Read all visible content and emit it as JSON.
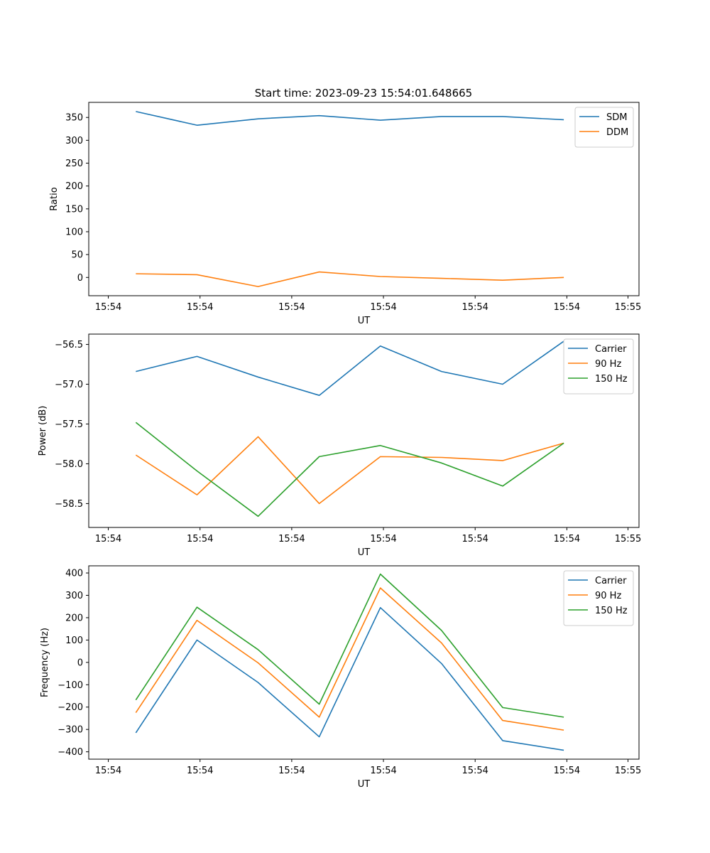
{
  "figure": {
    "title": "Start time: 2023-09-23 15:54:01.648665"
  },
  "colors": {
    "blue": "#1f77b4",
    "orange": "#ff7f0e",
    "green": "#2ca02c"
  },
  "chart_data": [
    {
      "type": "line",
      "title": "Start time: 2023-09-23 15:54:01.648665",
      "xlabel": "UT",
      "ylabel": "Ratio",
      "xticks": [
        "15:54",
        "15:54",
        "15:54",
        "15:54",
        "15:54",
        "15:54",
        "15:55"
      ],
      "yticks": [
        0,
        50,
        100,
        150,
        200,
        250,
        300,
        350
      ],
      "ylim": [
        -40,
        383
      ],
      "legend_position": "top-right",
      "grid": false,
      "x": [
        1,
        2,
        3,
        4,
        5,
        6,
        7,
        8
      ],
      "series": [
        {
          "name": "SDM",
          "color": "#1f77b4",
          "values": [
            363,
            333,
            347,
            354,
            344,
            352,
            352,
            345
          ]
        },
        {
          "name": "DDM",
          "color": "#ff7f0e",
          "values": [
            8,
            6,
            -20,
            12,
            2,
            -2,
            -6,
            0
          ]
        }
      ]
    },
    {
      "type": "line",
      "title": "",
      "xlabel": "UT",
      "ylabel": "Power (dB)",
      "xticks": [
        "15:54",
        "15:54",
        "15:54",
        "15:54",
        "15:54",
        "15:54",
        "15:55"
      ],
      "yticks": [
        -58.5,
        -58.0,
        -57.5,
        -57.0,
        -56.5
      ],
      "ytick_labels": [
        "−58.5",
        "−58.0",
        "−57.5",
        "−57.0",
        "−56.5"
      ],
      "ylim": [
        -58.8,
        -56.37
      ],
      "legend_position": "top-right",
      "grid": false,
      "x": [
        1,
        2,
        3,
        4,
        5,
        6,
        7,
        8
      ],
      "series": [
        {
          "name": "Carrier",
          "color": "#1f77b4",
          "values": [
            -56.84,
            -56.65,
            -56.91,
            -57.14,
            -56.52,
            -56.84,
            -57.0,
            -56.46
          ]
        },
        {
          "name": "90 Hz",
          "color": "#ff7f0e",
          "values": [
            -57.89,
            -58.39,
            -57.66,
            -58.5,
            -57.91,
            -57.92,
            -57.96,
            -57.74
          ]
        },
        {
          "name": "150 Hz",
          "color": "#2ca02c",
          "values": [
            -57.48,
            -58.09,
            -58.66,
            -57.91,
            -57.77,
            -57.99,
            -58.28,
            -57.74
          ]
        }
      ]
    },
    {
      "type": "line",
      "title": "",
      "xlabel": "UT",
      "ylabel": "Frequency (Hz)",
      "xticks": [
        "15:54",
        "15:54",
        "15:54",
        "15:54",
        "15:54",
        "15:54",
        "15:55"
      ],
      "yticks": [
        -400,
        -300,
        -200,
        -100,
        0,
        100,
        200,
        300,
        400
      ],
      "ytick_labels": [
        "−400",
        "−300",
        "−200",
        "−100",
        "0",
        "100",
        "200",
        "300",
        "400"
      ],
      "ylim": [
        -433,
        432
      ],
      "legend_position": "top-right",
      "grid": false,
      "x": [
        1,
        2,
        3,
        4,
        5,
        6,
        7,
        8
      ],
      "series": [
        {
          "name": "Carrier",
          "color": "#1f77b4",
          "values": [
            -315,
            100,
            -90,
            -333,
            245,
            -5,
            -350,
            -393
          ]
        },
        {
          "name": "90 Hz",
          "color": "#ff7f0e",
          "values": [
            -225,
            188,
            -2,
            -245,
            333,
            87,
            -260,
            -303
          ]
        },
        {
          "name": "150 Hz",
          "color": "#2ca02c",
          "values": [
            -168,
            247,
            57,
            -187,
            395,
            143,
            -202,
            -245
          ]
        }
      ]
    }
  ]
}
